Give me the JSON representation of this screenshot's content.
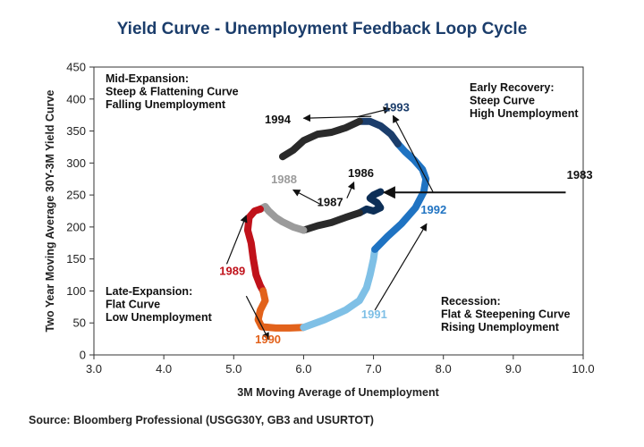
{
  "chart_data": {
    "type": "line",
    "title": "Yield Curve - Unemployment Feedback Loop Cycle",
    "xlabel": "3M Moving Average of Unemployment",
    "ylabel": "Two Year Moving Average 30Y-3M Yield Curve",
    "xlim": [
      3.0,
      10.0
    ],
    "ylim": [
      0,
      450
    ],
    "xticks": [
      "3.0",
      "4.0",
      "5.0",
      "6.0",
      "7.0",
      "8.0",
      "9.0",
      "10.0"
    ],
    "yticks": [
      "0",
      "50",
      "100",
      "150",
      "200",
      "250",
      "300",
      "350",
      "400",
      "450"
    ],
    "grid": false,
    "series": [
      {
        "name": "1983",
        "color": "#0d2f57",
        "points": [
          [
            7.1,
            255
          ],
          [
            7.0,
            250
          ],
          [
            6.95,
            245
          ],
          [
            7.05,
            238
          ],
          [
            7.1,
            230
          ],
          [
            7.0,
            225
          ],
          [
            6.9,
            228
          ],
          [
            6.8,
            222
          ]
        ]
      },
      {
        "name": "1986-1987",
        "color": "#2a2a2a",
        "points": [
          [
            6.8,
            222
          ],
          [
            6.6,
            215
          ],
          [
            6.4,
            207
          ],
          [
            6.2,
            202
          ],
          [
            6.0,
            195
          ]
        ]
      },
      {
        "name": "1988",
        "color": "#9b9b9b",
        "points": [
          [
            6.0,
            195
          ],
          [
            5.85,
            200
          ],
          [
            5.7,
            208
          ],
          [
            5.6,
            215
          ],
          [
            5.5,
            225
          ],
          [
            5.45,
            232
          ],
          [
            5.38,
            228
          ]
        ]
      },
      {
        "name": "1989",
        "color": "#c0121b",
        "points": [
          [
            5.38,
            228
          ],
          [
            5.3,
            225
          ],
          [
            5.22,
            215
          ],
          [
            5.2,
            195
          ],
          [
            5.25,
            175
          ],
          [
            5.28,
            150
          ],
          [
            5.32,
            125
          ],
          [
            5.38,
            108
          ],
          [
            5.42,
            100
          ]
        ]
      },
      {
        "name": "1990",
        "color": "#e2621b",
        "points": [
          [
            5.42,
            100
          ],
          [
            5.45,
            85
          ],
          [
            5.38,
            70
          ],
          [
            5.35,
            55
          ],
          [
            5.4,
            44
          ],
          [
            5.6,
            42
          ],
          [
            5.8,
            42
          ],
          [
            6.0,
            43
          ]
        ]
      },
      {
        "name": "1991",
        "color": "#7fc0e6",
        "points": [
          [
            6.0,
            43
          ],
          [
            6.3,
            55
          ],
          [
            6.6,
            70
          ],
          [
            6.8,
            85
          ],
          [
            6.9,
            105
          ],
          [
            6.95,
            125
          ],
          [
            7.0,
            150
          ],
          [
            7.02,
            165
          ]
        ]
      },
      {
        "name": "1992",
        "color": "#1f73c2",
        "points": [
          [
            7.02,
            165
          ],
          [
            7.2,
            185
          ],
          [
            7.4,
            205
          ],
          [
            7.6,
            230
          ],
          [
            7.72,
            255
          ],
          [
            7.75,
            275
          ],
          [
            7.7,
            290
          ],
          [
            7.58,
            305
          ],
          [
            7.45,
            318
          ],
          [
            7.35,
            330
          ]
        ]
      },
      {
        "name": "1993",
        "color": "#1b3d6b",
        "points": [
          [
            7.35,
            330
          ],
          [
            7.25,
            345
          ],
          [
            7.1,
            358
          ],
          [
            6.95,
            365
          ],
          [
            6.8,
            365
          ]
        ]
      },
      {
        "name": "1994",
        "color": "#2a2a2a",
        "points": [
          [
            6.8,
            365
          ],
          [
            6.6,
            355
          ],
          [
            6.4,
            348
          ],
          [
            6.2,
            345
          ],
          [
            6.0,
            335
          ],
          [
            5.85,
            320
          ],
          [
            5.7,
            310
          ]
        ]
      }
    ],
    "year_labels": [
      {
        "text": "1983",
        "x": 9.95,
        "y": 275,
        "color": "#111111"
      },
      {
        "text": "1986",
        "x": 6.82,
        "y": 278,
        "color": "#111111"
      },
      {
        "text": "1987",
        "x": 6.38,
        "y": 233,
        "color": "#111111"
      },
      {
        "text": "1988",
        "x": 5.72,
        "y": 268,
        "color": "#9b9b9b"
      },
      {
        "text": "1989",
        "x": 4.98,
        "y": 125,
        "color": "#c0121b"
      },
      {
        "text": "1990",
        "x": 5.49,
        "y": 18,
        "color": "#e2621b"
      },
      {
        "text": "1991",
        "x": 7.01,
        "y": 57,
        "color": "#7fc0e6"
      },
      {
        "text": "1992",
        "x": 7.86,
        "y": 221,
        "color": "#1f73c2"
      },
      {
        "text": "1993",
        "x": 7.33,
        "y": 381,
        "color": "#1b3d6b"
      },
      {
        "text": "1994",
        "x": 5.63,
        "y": 362,
        "color": "#111111"
      }
    ],
    "arrows": [
      {
        "from": [
          9.75,
          254
        ],
        "to": [
          7.15,
          254
        ]
      },
      {
        "from": [
          6.62,
          245
        ],
        "to": [
          6.72,
          270
        ]
      },
      {
        "from": [
          6.25,
          235
        ],
        "to": [
          5.85,
          258
        ]
      },
      {
        "from": [
          4.9,
          142
        ],
        "to": [
          5.18,
          218
        ]
      },
      {
        "from": [
          5.18,
          92
        ],
        "to": [
          5.5,
          24
        ]
      },
      {
        "from": [
          7.02,
          70
        ],
        "to": [
          7.76,
          205
        ]
      },
      {
        "from": [
          7.85,
          255
        ],
        "to": [
          7.28,
          374
        ]
      },
      {
        "from": [
          6.76,
          372
        ],
        "to": [
          7.24,
          385
        ]
      },
      {
        "from": [
          6.97,
          373
        ],
        "to": [
          6.0,
          370
        ]
      }
    ],
    "annotations": [
      {
        "lines": [
          "Mid-Expansion:",
          "Steep & Flattening Curve",
          "Falling Unemployment"
        ],
        "position": "top-left"
      },
      {
        "lines": [
          "Early Recovery:",
          "Steep Curve",
          "High Unemployment"
        ],
        "position": "top-right"
      },
      {
        "lines": [
          "Late-Expansion:",
          "Flat Curve",
          "Low Unemployment"
        ],
        "position": "bottom-left"
      },
      {
        "lines": [
          "Recession:",
          "Flat & Steepening Curve",
          "Rising Unemployment"
        ],
        "position": "bottom-right"
      }
    ]
  },
  "source": "Source: Bloomberg Professional (USGG30Y, GB3 and USURTOT)"
}
